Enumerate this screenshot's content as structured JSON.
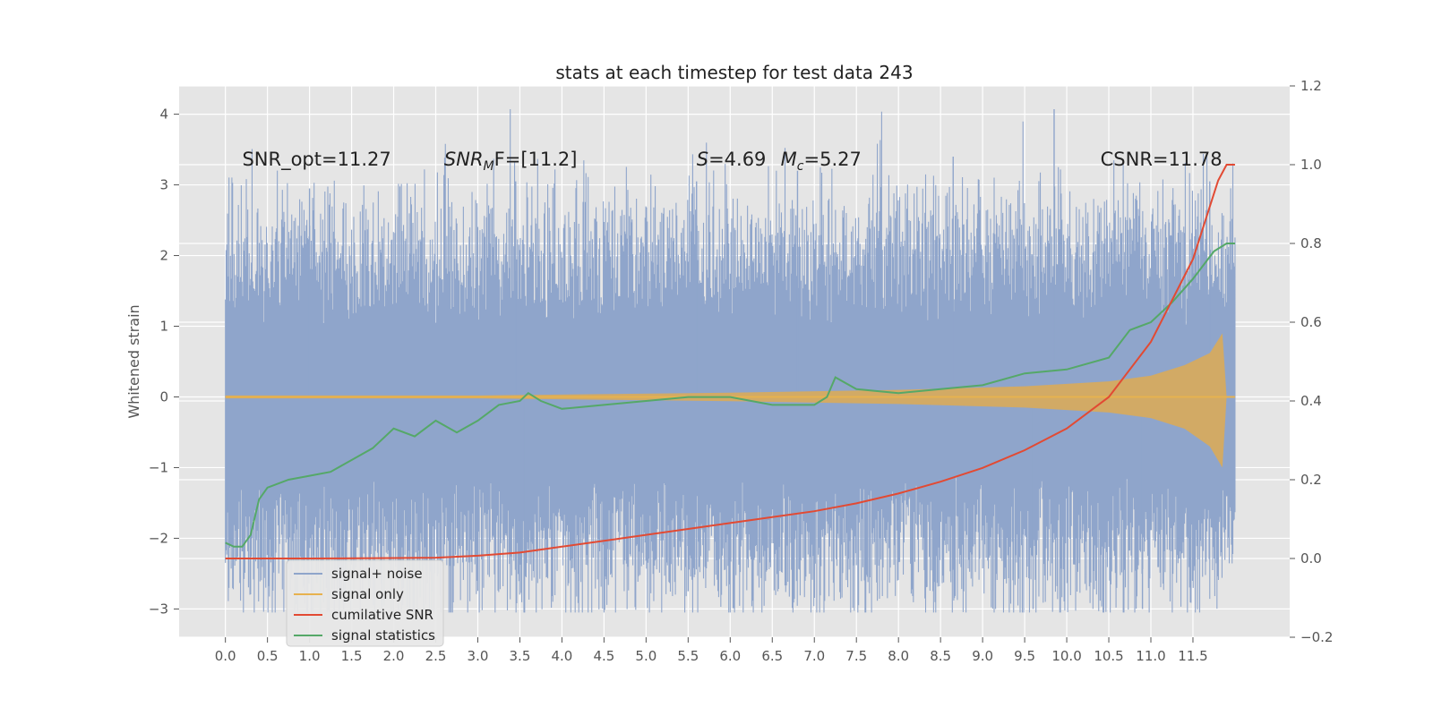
{
  "chart_data": {
    "type": "line",
    "title": "stats at each timestep for test data 243",
    "ylabel": "Whitened strain",
    "xlabel": "",
    "xlim": [
      -0.55,
      12.65
    ],
    "ylim": [
      -3.4,
      4.4
    ],
    "y2lim": [
      -0.2,
      1.2
    ],
    "x_ticks": [
      0.0,
      0.5,
      1.0,
      1.5,
      2.0,
      2.5,
      3.0,
      3.5,
      4.0,
      4.5,
      5.0,
      5.5,
      6.0,
      6.5,
      7.0,
      7.5,
      8.0,
      8.5,
      9.0,
      9.5,
      10.0,
      10.5,
      11.0,
      11.5
    ],
    "x_tick_labels": [
      "0.0",
      "0.5",
      "1.0",
      "1.5",
      "2.0",
      "2.5",
      "3.0",
      "3.5",
      "4.0",
      "4.5",
      "5.0",
      "5.5",
      "6.0",
      "6.5",
      "7.0",
      "7.5",
      "8.0",
      "8.5",
      "9.0",
      "9.5",
      "10.0",
      "10.5",
      "11.0",
      "11.5"
    ],
    "y_ticks": [
      -3,
      -2,
      -1,
      0,
      1,
      2,
      3,
      4
    ],
    "y_tick_labels": [
      "−3",
      "−2",
      "−1",
      "0",
      "1",
      "2",
      "3",
      "4"
    ],
    "y2_ticks": [
      -0.2,
      0.0,
      0.2,
      0.4,
      0.6,
      0.8,
      1.0,
      1.2
    ],
    "y2_tick_labels": [
      "−0.2",
      "0.0",
      "0.2",
      "0.4",
      "0.6",
      "0.8",
      "1.0",
      "1.2"
    ],
    "grid": true,
    "legend_position": "bottom-left",
    "annotations": [
      {
        "text": "SNR_opt=11.27",
        "x": 0.2,
        "y": 3.35
      },
      {
        "text": "SNR_MF=[11.2]",
        "x": 2.6,
        "y": 3.35,
        "math_parts": [
          "SNR",
          "M",
          "F=[11.2]"
        ]
      },
      {
        "text": "S=4.69",
        "x": 5.6,
        "y": 3.35,
        "math_parts": [
          "S",
          "=4.69"
        ]
      },
      {
        "text": "M_c=5.27",
        "x": 6.6,
        "y": 3.35,
        "math_parts": [
          "M",
          "c",
          "=5.27"
        ]
      },
      {
        "text": "CSNR=11.78",
        "x": 10.4,
        "y": 3.35
      }
    ],
    "series": [
      {
        "name": "signal+ noise",
        "axis": "left",
        "color": "#8fa5cb",
        "style": "noise band",
        "envelope": {
          "x_start": 0.0,
          "x_end": 12.0,
          "typical_min": -2.5,
          "typical_max": 2.3,
          "peak_max": 4.07,
          "peak_min": -3.05
        }
      },
      {
        "name": "signal only",
        "axis": "left",
        "color": "#e7b24f",
        "style": "chirp envelope",
        "amplitude": {
          "x": [
            0.0,
            3.0,
            6.0,
            8.0,
            9.5,
            10.5,
            11.0,
            11.4,
            11.7,
            11.85,
            11.9,
            12.0
          ],
          "upper": [
            0.02,
            0.02,
            0.06,
            0.1,
            0.15,
            0.22,
            0.3,
            0.45,
            0.62,
            0.9,
            0.0,
            0.0
          ],
          "lower": [
            -0.02,
            -0.02,
            -0.06,
            -0.1,
            -0.15,
            -0.22,
            -0.3,
            -0.45,
            -0.7,
            -1.0,
            0.0,
            0.0
          ]
        }
      },
      {
        "name": "cumilative SNR",
        "axis": "right",
        "color": "#e24a33",
        "x": [
          0.0,
          1.0,
          2.0,
          2.5,
          3.0,
          3.5,
          4.0,
          4.5,
          5.0,
          5.5,
          6.0,
          6.5,
          7.0,
          7.5,
          8.0,
          8.5,
          9.0,
          9.5,
          10.0,
          10.5,
          11.0,
          11.5,
          11.8,
          11.9,
          12.0
        ],
        "y": [
          0.0,
          0.0,
          0.001,
          0.002,
          0.007,
          0.015,
          0.03,
          0.045,
          0.06,
          0.075,
          0.09,
          0.105,
          0.12,
          0.14,
          0.165,
          0.195,
          0.23,
          0.275,
          0.33,
          0.41,
          0.55,
          0.76,
          0.96,
          1.0,
          1.0
        ]
      },
      {
        "name": "signal statistics",
        "axis": "right",
        "color": "#55a868",
        "x": [
          0.0,
          0.1,
          0.2,
          0.3,
          0.4,
          0.5,
          0.75,
          1.0,
          1.25,
          1.5,
          1.75,
          2.0,
          2.25,
          2.5,
          2.75,
          3.0,
          3.25,
          3.5,
          3.6,
          3.75,
          4.0,
          4.5,
          5.0,
          5.5,
          6.0,
          6.5,
          7.0,
          7.15,
          7.25,
          7.5,
          8.0,
          8.5,
          9.0,
          9.5,
          10.0,
          10.5,
          10.75,
          11.0,
          11.25,
          11.5,
          11.75,
          11.9,
          12.0
        ],
        "y": [
          0.04,
          0.03,
          0.03,
          0.06,
          0.15,
          0.18,
          0.2,
          0.21,
          0.22,
          0.25,
          0.28,
          0.33,
          0.31,
          0.35,
          0.32,
          0.35,
          0.39,
          0.4,
          0.42,
          0.4,
          0.38,
          0.39,
          0.4,
          0.41,
          0.41,
          0.39,
          0.39,
          0.41,
          0.46,
          0.43,
          0.42,
          0.43,
          0.44,
          0.47,
          0.48,
          0.51,
          0.58,
          0.6,
          0.65,
          0.71,
          0.78,
          0.8,
          0.8
        ]
      }
    ]
  }
}
